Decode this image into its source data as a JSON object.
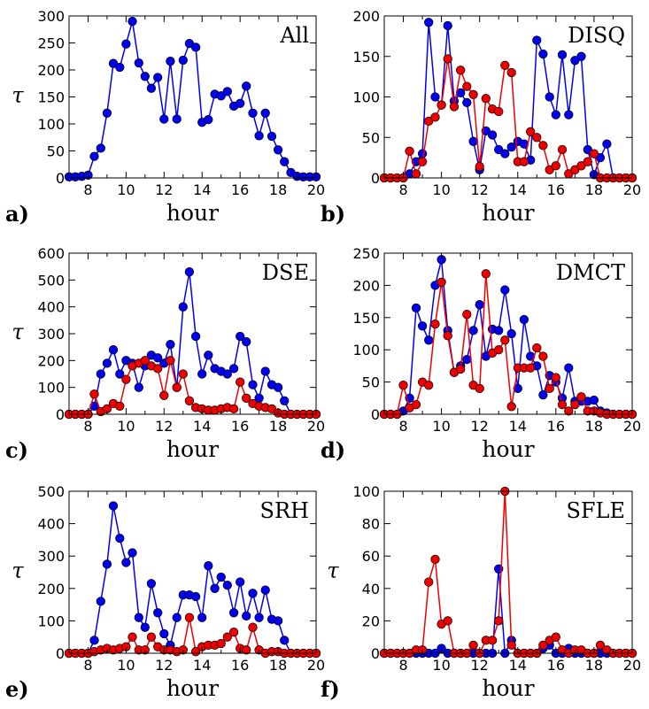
{
  "colors": {
    "blue": "#0000ee",
    "red": "#ee0000"
  },
  "chart_data": [
    {
      "type": "line",
      "title": "All",
      "panel_label": "a)",
      "xlabel": "hour",
      "ylabel": "τ",
      "xlim": [
        7,
        20
      ],
      "ylim": [
        0,
        300
      ],
      "xticks": [
        8,
        10,
        12,
        14,
        16,
        18,
        20
      ],
      "yticks": [
        0,
        50,
        100,
        150,
        200,
        250,
        300
      ],
      "series": [
        {
          "color": "blue",
          "x": [
            7.0,
            7.33,
            7.67,
            8.0,
            8.33,
            8.67,
            9.0,
            9.33,
            9.67,
            10.0,
            10.33,
            10.67,
            11.0,
            11.33,
            11.67,
            12.0,
            12.33,
            12.67,
            13.0,
            13.33,
            13.67,
            14.0,
            14.33,
            14.67,
            15.0,
            15.33,
            15.67,
            16.0,
            16.33,
            16.67,
            17.0,
            17.33,
            17.67,
            18.0,
            18.33,
            18.67,
            19.0,
            19.33,
            19.67,
            20.0
          ],
          "values": [
            2,
            2,
            3,
            5,
            40,
            55,
            120,
            212,
            205,
            248,
            290,
            213,
            188,
            166,
            186,
            109,
            216,
            109,
            218,
            249,
            242,
            103,
            108,
            155,
            152,
            160,
            133,
            138,
            170,
            120,
            78,
            120,
            77,
            52,
            30,
            10,
            3,
            2,
            2,
            2
          ]
        }
      ]
    },
    {
      "type": "line",
      "title": "DISQ",
      "panel_label": "b)",
      "xlabel": "hour",
      "ylabel": "",
      "xlim": [
        7,
        20
      ],
      "ylim": [
        0,
        200
      ],
      "xticks": [
        8,
        10,
        12,
        14,
        16,
        18,
        20
      ],
      "yticks": [
        0,
        50,
        100,
        150,
        200
      ],
      "series": [
        {
          "color": "blue",
          "x": [
            7.0,
            7.33,
            7.67,
            8.0,
            8.33,
            8.67,
            9.0,
            9.33,
            9.67,
            10.0,
            10.33,
            10.67,
            11.0,
            11.33,
            11.67,
            12.0,
            12.33,
            12.67,
            13.0,
            13.33,
            13.67,
            14.0,
            14.33,
            14.67,
            15.0,
            15.33,
            15.67,
            16.0,
            16.33,
            16.67,
            17.0,
            17.33,
            17.67,
            18.0,
            18.33,
            18.67,
            19.0,
            19.33,
            19.67,
            20.0
          ],
          "values": [
            0,
            0,
            0,
            0,
            5,
            20,
            30,
            192,
            100,
            90,
            188,
            95,
            105,
            93,
            45,
            10,
            58,
            53,
            35,
            30,
            38,
            45,
            42,
            22,
            170,
            153,
            100,
            78,
            152,
            78,
            145,
            150,
            35,
            4,
            25,
            42,
            0,
            0,
            0,
            0
          ]
        },
        {
          "color": "red",
          "x": [
            7.0,
            7.33,
            7.67,
            8.0,
            8.33,
            8.67,
            9.0,
            9.33,
            9.67,
            10.0,
            10.33,
            10.67,
            11.0,
            11.33,
            11.67,
            12.0,
            12.33,
            12.67,
            13.0,
            13.33,
            13.67,
            14.0,
            14.33,
            14.67,
            15.0,
            15.33,
            15.67,
            16.0,
            16.33,
            16.67,
            17.0,
            17.33,
            17.67,
            18.0,
            18.33,
            18.67,
            19.0,
            19.33,
            19.67,
            20.0
          ],
          "values": [
            0,
            0,
            0,
            0,
            33,
            5,
            20,
            70,
            75,
            90,
            147,
            88,
            133,
            113,
            103,
            14,
            98,
            85,
            82,
            139,
            130,
            20,
            20,
            57,
            50,
            40,
            10,
            15,
            35,
            5,
            10,
            15,
            20,
            30,
            0,
            0,
            0,
            0,
            0,
            0
          ]
        }
      ]
    },
    {
      "type": "line",
      "title": "DSE",
      "panel_label": "c)",
      "xlabel": "hour",
      "ylabel": "τ",
      "xlim": [
        7,
        20
      ],
      "ylim": [
        0,
        600
      ],
      "xticks": [
        8,
        10,
        12,
        14,
        16,
        18,
        20
      ],
      "yticks": [
        0,
        100,
        200,
        300,
        400,
        500,
        600
      ],
      "series": [
        {
          "color": "blue",
          "x": [
            7.0,
            7.33,
            7.67,
            8.0,
            8.33,
            8.67,
            9.0,
            9.33,
            9.67,
            10.0,
            10.33,
            10.67,
            11.0,
            11.33,
            11.67,
            12.0,
            12.33,
            12.67,
            13.0,
            13.33,
            13.67,
            14.0,
            14.33,
            14.67,
            15.0,
            15.33,
            15.67,
            16.0,
            16.33,
            16.67,
            17.0,
            17.33,
            17.67,
            18.0,
            18.33,
            18.67,
            19.0,
            19.33,
            19.67,
            20.0
          ],
          "values": [
            0,
            0,
            0,
            0,
            30,
            150,
            190,
            240,
            150,
            200,
            190,
            100,
            180,
            220,
            210,
            190,
            260,
            100,
            400,
            530,
            290,
            150,
            220,
            170,
            160,
            150,
            170,
            290,
            270,
            110,
            60,
            160,
            110,
            100,
            50,
            0,
            0,
            0,
            0,
            0
          ]
        },
        {
          "color": "red",
          "x": [
            7.0,
            7.33,
            7.67,
            8.0,
            8.33,
            8.67,
            9.0,
            9.33,
            9.67,
            10.0,
            10.33,
            10.67,
            11.0,
            11.33,
            11.67,
            12.0,
            12.33,
            12.67,
            13.0,
            13.33,
            13.67,
            14.0,
            14.33,
            14.67,
            15.0,
            15.33,
            15.67,
            16.0,
            16.33,
            16.67,
            17.0,
            17.33,
            17.67,
            18.0,
            18.33,
            18.67,
            19.0,
            19.33,
            19.67,
            20.0
          ],
          "values": [
            0,
            0,
            0,
            0,
            75,
            10,
            20,
            40,
            30,
            130,
            180,
            190,
            200,
            180,
            170,
            70,
            200,
            100,
            150,
            50,
            25,
            20,
            15,
            15,
            20,
            25,
            20,
            120,
            60,
            40,
            30,
            25,
            20,
            5,
            0,
            0,
            0,
            0,
            0,
            0
          ]
        }
      ]
    },
    {
      "type": "line",
      "title": "DMCT",
      "panel_label": "d)",
      "xlabel": "hour",
      "ylabel": "",
      "xlim": [
        7,
        20
      ],
      "ylim": [
        0,
        250
      ],
      "xticks": [
        8,
        10,
        12,
        14,
        16,
        18,
        20
      ],
      "yticks": [
        0,
        50,
        100,
        150,
        200,
        250
      ],
      "series": [
        {
          "color": "blue",
          "x": [
            7.0,
            7.33,
            7.67,
            8.0,
            8.33,
            8.67,
            9.0,
            9.33,
            9.67,
            10.0,
            10.33,
            10.67,
            11.0,
            11.33,
            11.67,
            12.0,
            12.33,
            12.67,
            13.0,
            13.33,
            13.67,
            14.0,
            14.33,
            14.67,
            15.0,
            15.33,
            15.67,
            16.0,
            16.33,
            16.67,
            17.0,
            17.33,
            17.67,
            18.0,
            18.33,
            18.67,
            19.0,
            19.33,
            19.67,
            20.0
          ],
          "values": [
            0,
            0,
            0,
            5,
            25,
            165,
            137,
            115,
            200,
            240,
            130,
            65,
            75,
            85,
            130,
            170,
            90,
            132,
            130,
            193,
            125,
            40,
            147,
            90,
            75,
            30,
            60,
            50,
            25,
            72,
            20,
            20,
            20,
            22,
            5,
            2,
            0,
            0,
            0,
            0
          ]
        },
        {
          "color": "red",
          "x": [
            7.0,
            7.33,
            7.67,
            8.0,
            8.33,
            8.67,
            9.0,
            9.33,
            9.67,
            10.0,
            10.33,
            10.67,
            11.0,
            11.33,
            11.67,
            12.0,
            12.33,
            12.67,
            13.0,
            13.33,
            13.67,
            14.0,
            14.33,
            14.67,
            15.0,
            15.33,
            15.67,
            16.0,
            16.33,
            16.67,
            17.0,
            17.33,
            17.67,
            18.0,
            18.33,
            18.67,
            19.0,
            19.33,
            19.67,
            20.0
          ],
          "values": [
            0,
            0,
            0,
            45,
            10,
            15,
            50,
            45,
            140,
            205,
            122,
            65,
            70,
            155,
            45,
            40,
            218,
            95,
            100,
            115,
            12,
            72,
            72,
            72,
            103,
            90,
            40,
            57,
            15,
            5,
            15,
            27,
            5,
            5,
            2,
            0,
            0,
            0,
            0,
            0
          ]
        }
      ]
    },
    {
      "type": "line",
      "title": "SRH",
      "panel_label": "e)",
      "xlabel": "hour",
      "ylabel": "τ",
      "xlim": [
        7,
        20
      ],
      "ylim": [
        0,
        500
      ],
      "xticks": [
        8,
        10,
        12,
        14,
        16,
        18,
        20
      ],
      "yticks": [
        0,
        100,
        200,
        300,
        400,
        500
      ],
      "series": [
        {
          "color": "blue",
          "x": [
            7.0,
            7.33,
            7.67,
            8.0,
            8.33,
            8.67,
            9.0,
            9.33,
            9.67,
            10.0,
            10.33,
            10.67,
            11.0,
            11.33,
            11.67,
            12.0,
            12.33,
            12.67,
            13.0,
            13.33,
            13.67,
            14.0,
            14.33,
            14.67,
            15.0,
            15.33,
            15.67,
            16.0,
            16.33,
            16.67,
            17.0,
            17.33,
            17.67,
            18.0,
            18.33,
            18.67,
            19.0,
            19.33,
            19.67,
            20.0
          ],
          "values": [
            0,
            0,
            0,
            0,
            40,
            160,
            275,
            455,
            355,
            280,
            310,
            110,
            80,
            215,
            125,
            60,
            25,
            110,
            180,
            180,
            175,
            110,
            270,
            200,
            235,
            210,
            125,
            220,
            115,
            185,
            110,
            195,
            105,
            100,
            40,
            0,
            0,
            0,
            0,
            0
          ]
        },
        {
          "color": "red",
          "x": [
            7.0,
            7.33,
            7.67,
            8.0,
            8.33,
            8.67,
            9.0,
            9.33,
            9.67,
            10.0,
            10.33,
            10.67,
            11.0,
            11.33,
            11.67,
            12.0,
            12.33,
            12.67,
            13.0,
            13.33,
            13.67,
            14.0,
            14.33,
            14.67,
            15.0,
            15.33,
            15.67,
            16.0,
            16.33,
            16.67,
            17.0,
            17.33,
            17.67,
            18.0,
            18.33,
            18.67,
            19.0,
            19.33,
            19.67,
            20.0
          ],
          "values": [
            0,
            0,
            0,
            0,
            5,
            10,
            15,
            10,
            15,
            20,
            50,
            10,
            10,
            50,
            20,
            10,
            10,
            5,
            10,
            110,
            5,
            20,
            25,
            25,
            30,
            50,
            65,
            15,
            10,
            80,
            10,
            0,
            5,
            5,
            0,
            0,
            0,
            0,
            0,
            0
          ]
        }
      ]
    },
    {
      "type": "line",
      "title": "SFLE",
      "panel_label": "f)",
      "xlabel": "hour",
      "ylabel": "τ",
      "xlim": [
        7,
        20
      ],
      "ylim": [
        0,
        100
      ],
      "xticks": [
        8,
        10,
        12,
        14,
        16,
        18,
        20
      ],
      "yticks": [
        0,
        20,
        40,
        60,
        80,
        100
      ],
      "series": [
        {
          "color": "blue",
          "x": [
            7.0,
            7.33,
            7.67,
            8.0,
            8.33,
            8.67,
            9.0,
            9.33,
            9.67,
            10.0,
            10.33,
            10.67,
            11.0,
            11.33,
            11.67,
            12.0,
            12.33,
            12.67,
            13.0,
            13.33,
            13.67,
            14.0,
            14.33,
            14.67,
            15.0,
            15.33,
            15.67,
            16.0,
            16.33,
            16.67,
            17.0,
            17.33,
            17.67,
            18.0,
            18.33,
            18.67,
            19.0,
            19.33,
            19.67,
            20.0
          ],
          "values": [
            0,
            0,
            0,
            0,
            0,
            0,
            0,
            0,
            0,
            3,
            0,
            0,
            0,
            0,
            0,
            0,
            0,
            0,
            52,
            0,
            8,
            0,
            0,
            0,
            0,
            3,
            5,
            0,
            0,
            3,
            0,
            0,
            0,
            0,
            0,
            0,
            0,
            0,
            0,
            0
          ]
        },
        {
          "color": "red",
          "x": [
            7.0,
            7.33,
            7.67,
            8.0,
            8.33,
            8.67,
            9.0,
            9.33,
            9.67,
            10.0,
            10.33,
            10.67,
            11.0,
            11.33,
            11.67,
            12.0,
            12.33,
            12.67,
            13.0,
            13.33,
            13.67,
            14.0,
            14.33,
            14.67,
            15.0,
            15.33,
            15.67,
            16.0,
            16.33,
            16.67,
            17.0,
            17.33,
            17.67,
            18.0,
            18.33,
            18.67,
            19.0,
            19.33,
            19.67,
            20.0
          ],
          "values": [
            0,
            0,
            0,
            0,
            0,
            2,
            2,
            44,
            58,
            18,
            20,
            0,
            0,
            0,
            5,
            0,
            8,
            8,
            20,
            100,
            5,
            0,
            0,
            0,
            0,
            5,
            8,
            10,
            2,
            0,
            2,
            2,
            0,
            0,
            5,
            2,
            0,
            0,
            0,
            0
          ]
        }
      ]
    }
  ]
}
